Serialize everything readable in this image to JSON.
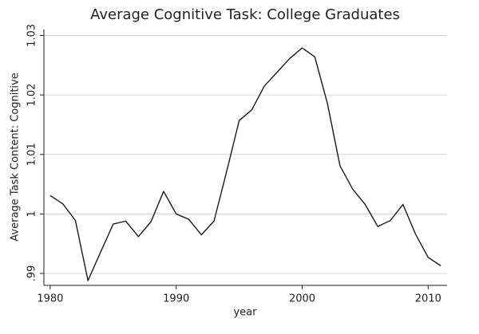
{
  "chart_data": {
    "type": "line",
    "title": "Average Cognitive Task: College Graduates",
    "xlabel": "year",
    "ylabel": "Average Task Content: Cognitive",
    "color": "#1a1a1a",
    "grid": true,
    "x": [
      1980,
      1981,
      1982,
      1983,
      1984,
      1985,
      1986,
      1987,
      1988,
      1989,
      1990,
      1991,
      1992,
      1993,
      1994,
      1995,
      1996,
      1997,
      1998,
      1999,
      2000,
      2001,
      2002,
      2003,
      2004,
      2005,
      2006,
      2007,
      2008,
      2009,
      2010,
      2011
    ],
    "values": [
      1.0031,
      1.0017,
      0.9989,
      0.9888,
      0.9936,
      0.9983,
      0.9988,
      0.9962,
      0.9987,
      1.0038,
      1.0,
      0.9991,
      0.9965,
      0.9988,
      1.0071,
      1.0157,
      1.0175,
      1.0215,
      1.0238,
      1.0261,
      1.0279,
      1.0264,
      1.0186,
      1.0081,
      1.0042,
      1.0016,
      0.9979,
      0.9989,
      1.0016,
      0.9966,
      0.9927,
      0.9913
    ],
    "xlim": [
      1979.5,
      2011.5
    ],
    "xticks": [
      1980,
      1990,
      2000,
      2010
    ],
    "ylim": [
      0.988,
      1.031
    ],
    "yticks": [
      {
        "value": 0.99,
        "label": ".99"
      },
      1,
      1.01,
      1.02,
      1.03
    ]
  }
}
